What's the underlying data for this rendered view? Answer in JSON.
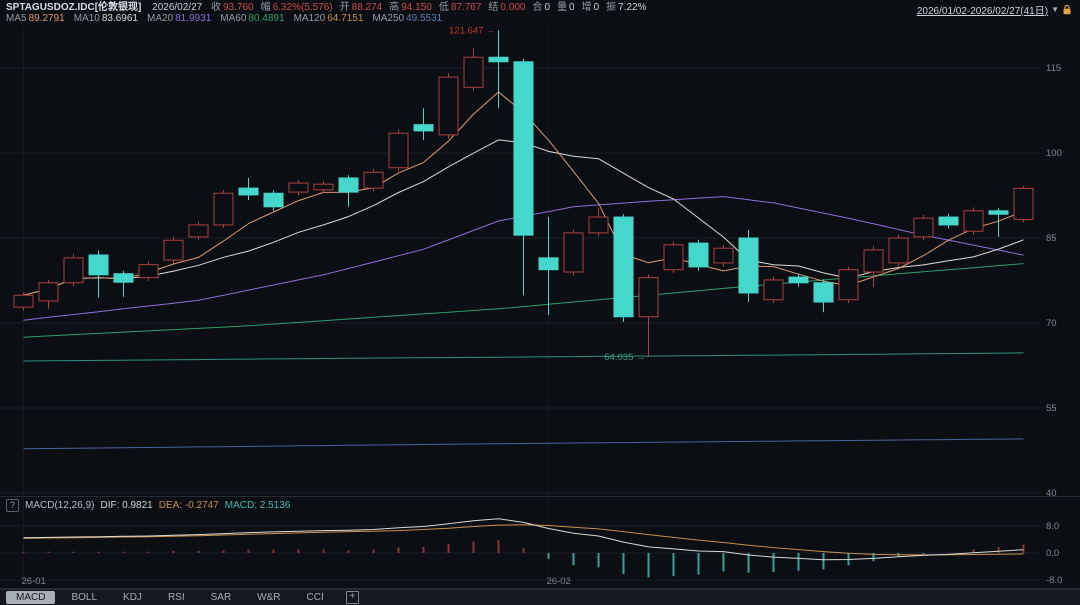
{
  "header": {
    "symbol": "SPTAGUSDOZ.IDC[伦敦银现]",
    "date": "2026/02/27",
    "quote_fields": [
      {
        "label": "收",
        "value": "93.760",
        "color": "#cc4b4b"
      },
      {
        "label": "幅",
        "value": "6.32%(5.576)",
        "color": "#cc4b4b"
      },
      {
        "label": "开",
        "value": "88.274",
        "color": "#cc4b4b"
      },
      {
        "label": "高",
        "value": "94.150",
        "color": "#cc4b4b"
      },
      {
        "label": "低",
        "value": "87.767",
        "color": "#cc4b4b"
      },
      {
        "label": "结",
        "value": "0.000",
        "color": "#cc4b4b"
      },
      {
        "label": "合",
        "value": "0",
        "color": "#ccd2da"
      },
      {
        "label": "量",
        "value": "0",
        "color": "#ccd2da"
      },
      {
        "label": "增",
        "value": "0",
        "color": "#ccd2da"
      },
      {
        "label": "振",
        "value": "7.22%",
        "color": "#ccd2da"
      }
    ],
    "ma_legend": [
      {
        "label": "MA5",
        "value": "89.2791",
        "color": "#e09a78"
      },
      {
        "label": "MA10",
        "value": "83.6961",
        "color": "#dddcd4"
      },
      {
        "label": "MA20",
        "value": "81.9931",
        "color": "#8f6fd8"
      },
      {
        "label": "MA60",
        "value": "80.4891",
        "color": "#2e9e68"
      },
      {
        "label": "MA120",
        "value": "64.7151",
        "color": "#c98f4e"
      },
      {
        "label": "MA250",
        "value": "49.5531",
        "color": "#5d7fb5"
      }
    ],
    "range_label": "2026/01/02-2026/02/27(41日)",
    "range_caret": "▼"
  },
  "indicator_row": {
    "help_icon": "?",
    "title": "MACD(12,26,9)",
    "dif_label": "DIF: 0.9821",
    "dea_label": "DEA: -0.2747",
    "macd_label": "MACD: 2.5136",
    "dif_color": "#d9d9d2",
    "dea_color": "#c98f4e",
    "macd_color": "#3bbdb4"
  },
  "tabs": {
    "items": [
      "MACD",
      "BOLL",
      "KDJ",
      "RSI",
      "SAR",
      "W&R",
      "CCI"
    ],
    "active": "MACD",
    "add_icon": "+"
  },
  "chart_data": {
    "type": "candlestick",
    "title": "SPTAGUSDOZ.IDC 伦敦银现 日K",
    "date_range": "2026/01/02-2026/02/27",
    "period_days": 41,
    "up_color": "#ae4040",
    "down_color": "#45d6cc",
    "grid_color": "#191f28",
    "axis_text_color": "#7f8893",
    "y_axis": {
      "ticks": [
        115,
        100,
        85,
        70,
        55,
        40
      ]
    },
    "x_labels": [
      {
        "index": 0,
        "text": "26-01"
      },
      {
        "index": 21,
        "text": "26-02"
      }
    ],
    "annotations": [
      {
        "day": 19,
        "price": 121.647,
        "text": "121.647",
        "color": "#c0392b"
      },
      {
        "day": 25,
        "price": 64.035,
        "text": "64.035",
        "color": "#2fa08d"
      }
    ],
    "candles": [
      [
        72.8,
        75.4,
        72.2,
        74.9
      ],
      [
        73.9,
        77.6,
        72.5,
        77.1
      ],
      [
        77.1,
        82.2,
        76.5,
        81.5
      ],
      [
        82.0,
        82.8,
        74.5,
        78.5
      ],
      [
        78.7,
        79.2,
        74.6,
        77.2
      ],
      [
        78.0,
        80.9,
        77.4,
        80.3
      ],
      [
        81.1,
        85.2,
        80.5,
        84.6
      ],
      [
        85.2,
        87.9,
        84.6,
        87.3
      ],
      [
        87.3,
        93.5,
        86.8,
        92.9
      ],
      [
        93.8,
        95.6,
        91.7,
        92.6
      ],
      [
        92.9,
        93.4,
        89.8,
        90.5
      ],
      [
        93.1,
        95.2,
        92.5,
        94.7
      ],
      [
        93.5,
        95.0,
        92.9,
        94.5
      ],
      [
        95.6,
        96.1,
        90.5,
        93.1
      ],
      [
        93.8,
        97.2,
        93.2,
        96.6
      ],
      [
        97.4,
        104.2,
        96.8,
        103.5
      ],
      [
        105.0,
        107.9,
        102.3,
        103.9
      ],
      [
        103.2,
        114.1,
        102.5,
        113.4
      ],
      [
        111.6,
        118.5,
        110.9,
        116.9
      ],
      [
        116.9,
        121.647,
        107.9,
        116.1
      ],
      [
        116.1,
        116.6,
        74.9,
        85.5
      ],
      [
        81.5,
        88.7,
        71.4,
        79.4
      ],
      [
        79.0,
        86.5,
        78.4,
        85.9
      ],
      [
        85.9,
        90.3,
        85.3,
        88.7
      ],
      [
        88.7,
        89.2,
        70.2,
        71.1
      ],
      [
        71.1,
        78.6,
        64.035,
        78.0
      ],
      [
        79.4,
        84.4,
        78.8,
        83.8
      ],
      [
        84.1,
        84.7,
        79.2,
        79.9
      ],
      [
        80.6,
        83.8,
        79.9,
        83.2
      ],
      [
        85.0,
        86.4,
        73.7,
        75.3
      ],
      [
        74.1,
        78.2,
        73.5,
        77.6
      ],
      [
        78.1,
        78.7,
        76.4,
        77.1
      ],
      [
        77.1,
        77.7,
        71.9,
        73.7
      ],
      [
        74.1,
        80.0,
        73.5,
        79.4
      ],
      [
        79.0,
        83.6,
        76.3,
        82.9
      ],
      [
        80.6,
        85.6,
        80.0,
        85.0
      ],
      [
        85.2,
        89.1,
        84.6,
        88.5
      ],
      [
        88.7,
        89.3,
        86.7,
        87.3
      ],
      [
        86.2,
        90.4,
        85.6,
        89.8
      ],
      [
        89.8,
        90.3,
        85.2,
        89.2
      ],
      [
        88.274,
        94.15,
        87.767,
        93.76
      ]
    ],
    "ma_computed": [
      {
        "name": "MA5",
        "period": 5,
        "color": "#e09a78"
      },
      {
        "name": "MA10",
        "period": 10,
        "color": "#dddcd4"
      }
    ],
    "ma_waypoints": [
      {
        "name": "MA20",
        "color": "#8f6fd8",
        "points": [
          [
            0,
            70.5
          ],
          [
            7,
            74.0
          ],
          [
            12,
            78.5
          ],
          [
            16,
            83.0
          ],
          [
            19,
            88.0
          ],
          [
            22,
            90.5
          ],
          [
            25,
            91.5
          ],
          [
            28,
            92.3
          ],
          [
            30,
            91.2
          ],
          [
            33,
            88.5
          ],
          [
            36,
            85.5
          ],
          [
            40,
            81.99
          ]
        ]
      },
      {
        "name": "MA60",
        "color": "#2e9e68",
        "points": [
          [
            0,
            67.5
          ],
          [
            9,
            69.5
          ],
          [
            19,
            72.5
          ],
          [
            29,
            76.5
          ],
          [
            40,
            80.49
          ]
        ]
      },
      {
        "name": "MA120",
        "color": "#2f8f84",
        "points": [
          [
            0,
            63.3
          ],
          [
            14,
            63.8
          ],
          [
            29,
            64.3
          ],
          [
            40,
            64.72
          ]
        ]
      },
      {
        "name": "MA250",
        "color": "#49639c",
        "points": [
          [
            0,
            47.8
          ],
          [
            19,
            48.7
          ],
          [
            40,
            49.55
          ]
        ]
      }
    ],
    "macd": {
      "params": "MACD(12,26,9)",
      "dif": [
        4.5,
        4.6,
        4.7,
        4.8,
        4.9,
        5.0,
        5.2,
        5.4,
        5.7,
        6.0,
        6.2,
        6.4,
        6.6,
        6.7,
        6.9,
        7.4,
        7.8,
        8.6,
        9.5,
        10.1,
        9.0,
        7.2,
        5.8,
        5.0,
        3.2,
        1.8,
        1.2,
        0.6,
        0.4,
        -0.6,
        -1.2,
        -1.6,
        -2.0,
        -1.9,
        -1.6,
        -1.1,
        -0.7,
        -0.4,
        0.1,
        0.5,
        0.9821
      ],
      "dea": [
        4.3,
        4.4,
        4.5,
        4.6,
        4.7,
        4.8,
        4.9,
        5.1,
        5.3,
        5.5,
        5.7,
        5.9,
        6.1,
        6.3,
        6.4,
        6.6,
        6.9,
        7.3,
        7.8,
        8.2,
        8.3,
        8.1,
        7.6,
        7.1,
        6.3,
        5.4,
        4.6,
        3.8,
        3.1,
        2.3,
        1.6,
        1.0,
        0.4,
        -0.1,
        -0.4,
        -0.5,
        -0.55,
        -0.5,
        -0.45,
        -0.38,
        -0.2747
      ],
      "dif_value": 0.9821,
      "dea_value": -0.2747,
      "macd_value": 2.5136,
      "y_ticks": [
        8.0,
        0.0,
        -8.0
      ],
      "dif_color": "#d9d9d2",
      "dea_color": "#c98f4e",
      "hist_pos_color": "#a23c3c",
      "hist_neg_color": "#3bbdb4"
    }
  }
}
